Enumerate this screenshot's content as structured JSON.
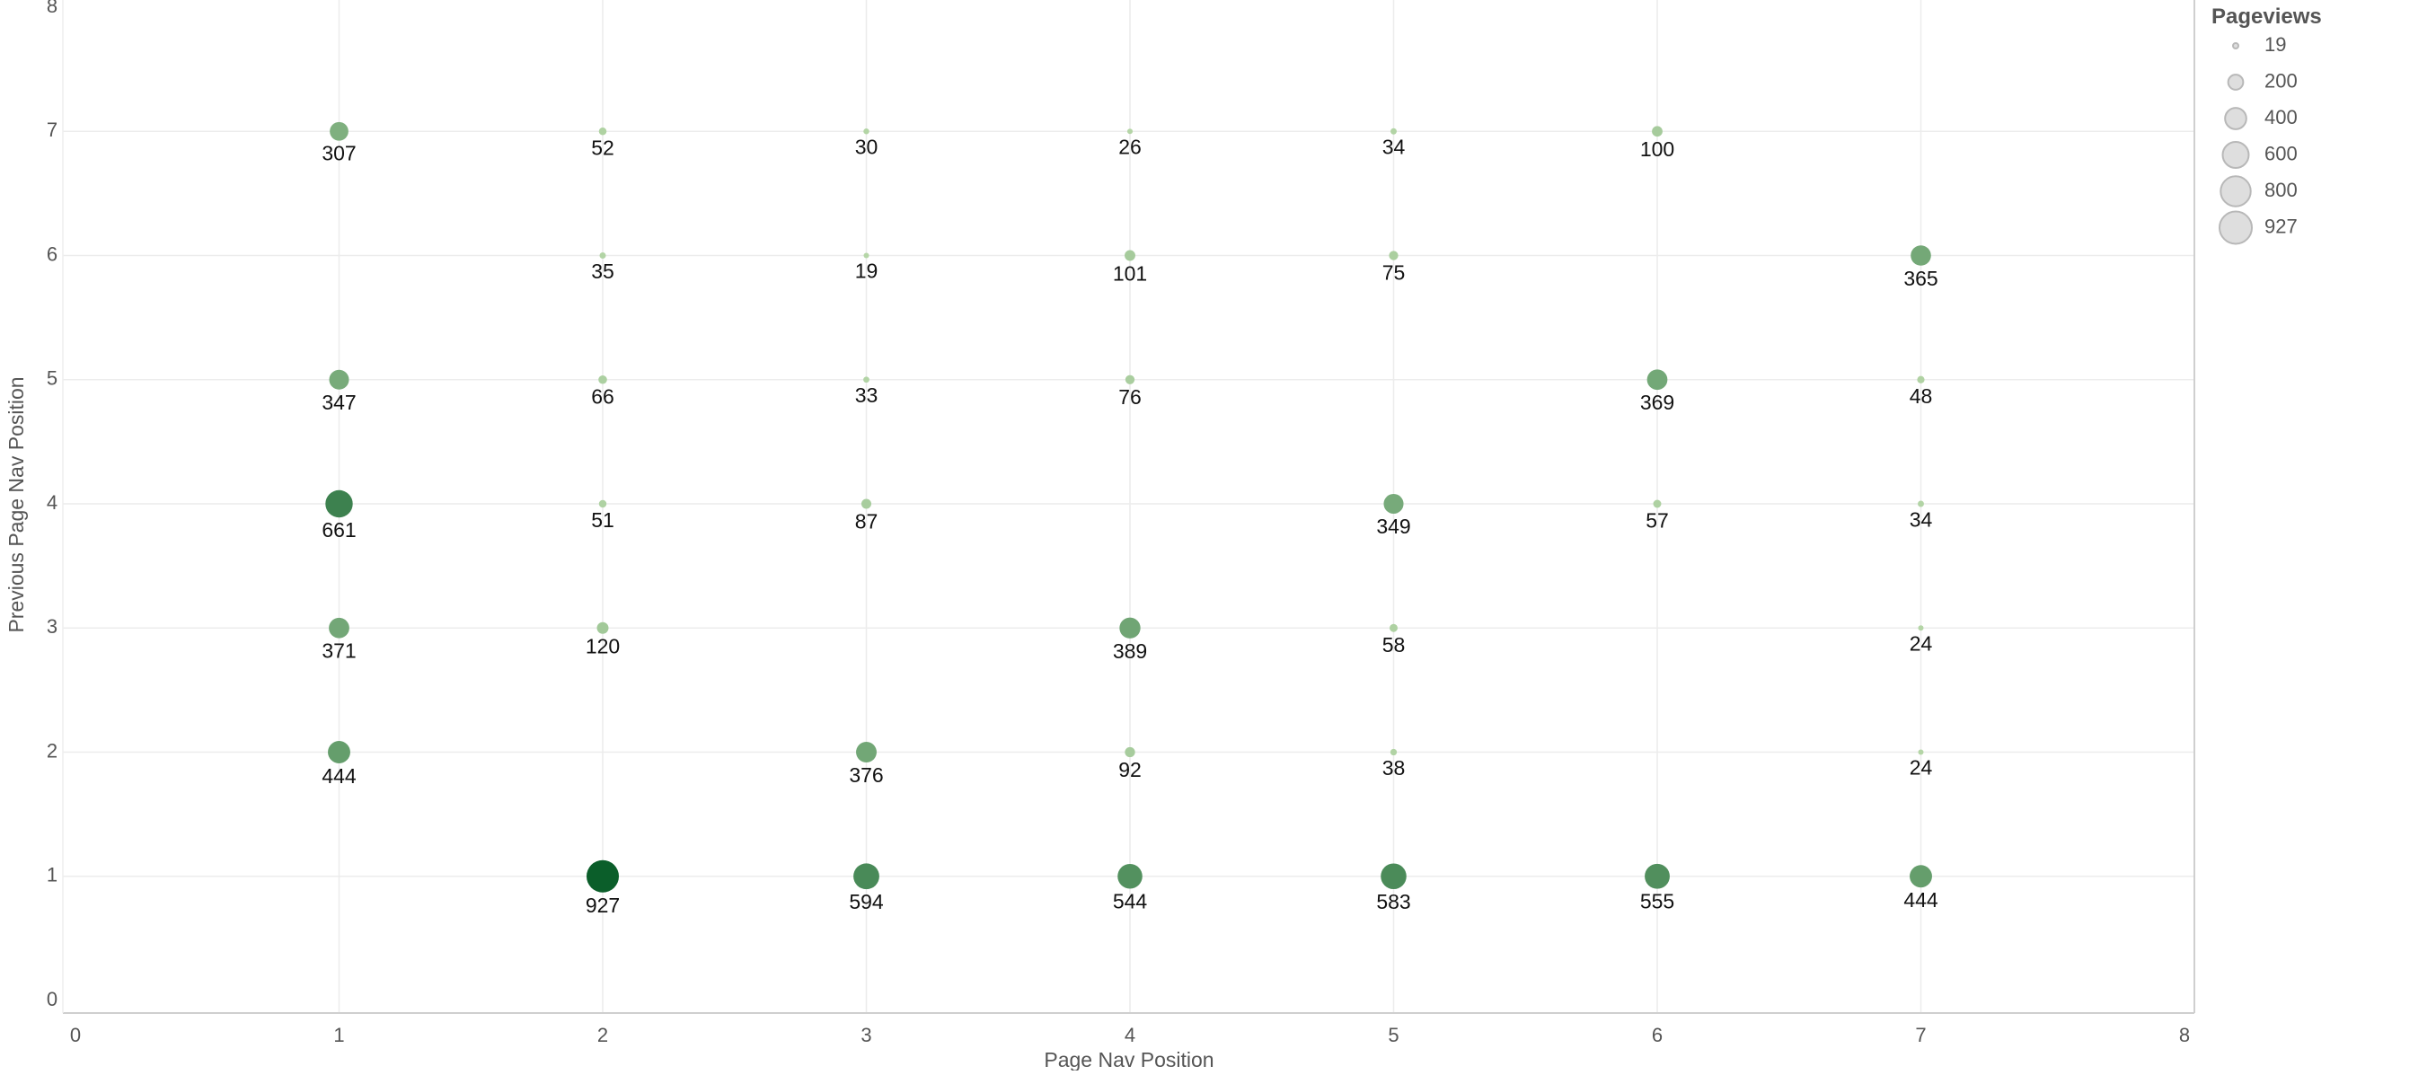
{
  "chart_data": {
    "type": "scatter",
    "xlabel": "Page Nav Position",
    "ylabel": "Previous Page Nav Position",
    "xlim": [
      0,
      8
    ],
    "ylim": [
      0,
      8
    ],
    "xticks": [
      "0",
      "1",
      "2",
      "3",
      "4",
      "5",
      "6",
      "7",
      "8"
    ],
    "yticks": [
      "0",
      "1",
      "2",
      "3",
      "4",
      "5",
      "6",
      "7",
      "8"
    ],
    "grid": true,
    "size_measure": "Pageviews",
    "color_measure": "Pageviews",
    "color_range": [
      "#b5d6a7",
      "#0b5e2a"
    ],
    "legend": {
      "title": "Pageviews",
      "position": "top-right",
      "entries": [
        {
          "label": "19",
          "value": 19
        },
        {
          "label": "200",
          "value": 200
        },
        {
          "label": "400",
          "value": 400
        },
        {
          "label": "600",
          "value": 600
        },
        {
          "label": "800",
          "value": 800
        },
        {
          "label": "927",
          "value": 927
        }
      ]
    },
    "points": [
      {
        "x": 1,
        "y": 7,
        "value": 307
      },
      {
        "x": 2,
        "y": 7,
        "value": 52
      },
      {
        "x": 3,
        "y": 7,
        "value": 30
      },
      {
        "x": 4,
        "y": 7,
        "value": 26
      },
      {
        "x": 5,
        "y": 7,
        "value": 34
      },
      {
        "x": 6,
        "y": 7,
        "value": 100
      },
      {
        "x": 2,
        "y": 6,
        "value": 35
      },
      {
        "x": 3,
        "y": 6,
        "value": 19
      },
      {
        "x": 4,
        "y": 6,
        "value": 101
      },
      {
        "x": 5,
        "y": 6,
        "value": 75
      },
      {
        "x": 7,
        "y": 6,
        "value": 365
      },
      {
        "x": 1,
        "y": 5,
        "value": 347
      },
      {
        "x": 2,
        "y": 5,
        "value": 66
      },
      {
        "x": 3,
        "y": 5,
        "value": 33
      },
      {
        "x": 4,
        "y": 5,
        "value": 76
      },
      {
        "x": 6,
        "y": 5,
        "value": 369
      },
      {
        "x": 7,
        "y": 5,
        "value": 48
      },
      {
        "x": 1,
        "y": 4,
        "value": 661
      },
      {
        "x": 2,
        "y": 4,
        "value": 51
      },
      {
        "x": 3,
        "y": 4,
        "value": 87
      },
      {
        "x": 5,
        "y": 4,
        "value": 349
      },
      {
        "x": 6,
        "y": 4,
        "value": 57
      },
      {
        "x": 7,
        "y": 4,
        "value": 34
      },
      {
        "x": 1,
        "y": 3,
        "value": 371
      },
      {
        "x": 2,
        "y": 3,
        "value": 120
      },
      {
        "x": 4,
        "y": 3,
        "value": 389
      },
      {
        "x": 5,
        "y": 3,
        "value": 58
      },
      {
        "x": 7,
        "y": 3,
        "value": 24
      },
      {
        "x": 1,
        "y": 2,
        "value": 444
      },
      {
        "x": 3,
        "y": 2,
        "value": 376
      },
      {
        "x": 4,
        "y": 2,
        "value": 92
      },
      {
        "x": 5,
        "y": 2,
        "value": 38
      },
      {
        "x": 7,
        "y": 2,
        "value": 24
      },
      {
        "x": 2,
        "y": 1,
        "value": 927
      },
      {
        "x": 3,
        "y": 1,
        "value": 594
      },
      {
        "x": 4,
        "y": 1,
        "value": 544
      },
      {
        "x": 5,
        "y": 1,
        "value": 583
      },
      {
        "x": 6,
        "y": 1,
        "value": 555
      },
      {
        "x": 7,
        "y": 1,
        "value": 444
      }
    ]
  }
}
